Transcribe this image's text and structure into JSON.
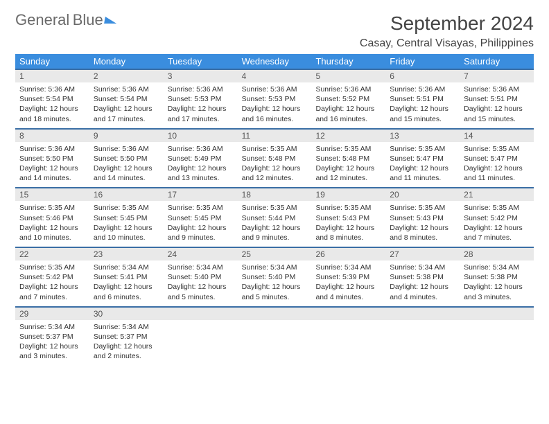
{
  "brand": {
    "word1": "General",
    "word2": "Blue"
  },
  "title": "September 2024",
  "location": "Casay, Central Visayas, Philippines",
  "colors": {
    "header_bg": "#3a8dde",
    "header_text": "#ffffff",
    "daynum_bg": "#e9e9e9",
    "rule": "#3a6ea5",
    "text": "#333333",
    "title_text": "#444444"
  },
  "day_headers": [
    "Sunday",
    "Monday",
    "Tuesday",
    "Wednesday",
    "Thursday",
    "Friday",
    "Saturday"
  ],
  "weeks": [
    [
      {
        "n": "1",
        "sr": "5:36 AM",
        "ss": "5:54 PM",
        "dl": "12 hours and 18 minutes."
      },
      {
        "n": "2",
        "sr": "5:36 AM",
        "ss": "5:54 PM",
        "dl": "12 hours and 17 minutes."
      },
      {
        "n": "3",
        "sr": "5:36 AM",
        "ss": "5:53 PM",
        "dl": "12 hours and 17 minutes."
      },
      {
        "n": "4",
        "sr": "5:36 AM",
        "ss": "5:53 PM",
        "dl": "12 hours and 16 minutes."
      },
      {
        "n": "5",
        "sr": "5:36 AM",
        "ss": "5:52 PM",
        "dl": "12 hours and 16 minutes."
      },
      {
        "n": "6",
        "sr": "5:36 AM",
        "ss": "5:51 PM",
        "dl": "12 hours and 15 minutes."
      },
      {
        "n": "7",
        "sr": "5:36 AM",
        "ss": "5:51 PM",
        "dl": "12 hours and 15 minutes."
      }
    ],
    [
      {
        "n": "8",
        "sr": "5:36 AM",
        "ss": "5:50 PM",
        "dl": "12 hours and 14 minutes."
      },
      {
        "n": "9",
        "sr": "5:36 AM",
        "ss": "5:50 PM",
        "dl": "12 hours and 14 minutes."
      },
      {
        "n": "10",
        "sr": "5:36 AM",
        "ss": "5:49 PM",
        "dl": "12 hours and 13 minutes."
      },
      {
        "n": "11",
        "sr": "5:35 AM",
        "ss": "5:48 PM",
        "dl": "12 hours and 12 minutes."
      },
      {
        "n": "12",
        "sr": "5:35 AM",
        "ss": "5:48 PM",
        "dl": "12 hours and 12 minutes."
      },
      {
        "n": "13",
        "sr": "5:35 AM",
        "ss": "5:47 PM",
        "dl": "12 hours and 11 minutes."
      },
      {
        "n": "14",
        "sr": "5:35 AM",
        "ss": "5:47 PM",
        "dl": "12 hours and 11 minutes."
      }
    ],
    [
      {
        "n": "15",
        "sr": "5:35 AM",
        "ss": "5:46 PM",
        "dl": "12 hours and 10 minutes."
      },
      {
        "n": "16",
        "sr": "5:35 AM",
        "ss": "5:45 PM",
        "dl": "12 hours and 10 minutes."
      },
      {
        "n": "17",
        "sr": "5:35 AM",
        "ss": "5:45 PM",
        "dl": "12 hours and 9 minutes."
      },
      {
        "n": "18",
        "sr": "5:35 AM",
        "ss": "5:44 PM",
        "dl": "12 hours and 9 minutes."
      },
      {
        "n": "19",
        "sr": "5:35 AM",
        "ss": "5:43 PM",
        "dl": "12 hours and 8 minutes."
      },
      {
        "n": "20",
        "sr": "5:35 AM",
        "ss": "5:43 PM",
        "dl": "12 hours and 8 minutes."
      },
      {
        "n": "21",
        "sr": "5:35 AM",
        "ss": "5:42 PM",
        "dl": "12 hours and 7 minutes."
      }
    ],
    [
      {
        "n": "22",
        "sr": "5:35 AM",
        "ss": "5:42 PM",
        "dl": "12 hours and 7 minutes."
      },
      {
        "n": "23",
        "sr": "5:34 AM",
        "ss": "5:41 PM",
        "dl": "12 hours and 6 minutes."
      },
      {
        "n": "24",
        "sr": "5:34 AM",
        "ss": "5:40 PM",
        "dl": "12 hours and 5 minutes."
      },
      {
        "n": "25",
        "sr": "5:34 AM",
        "ss": "5:40 PM",
        "dl": "12 hours and 5 minutes."
      },
      {
        "n": "26",
        "sr": "5:34 AM",
        "ss": "5:39 PM",
        "dl": "12 hours and 4 minutes."
      },
      {
        "n": "27",
        "sr": "5:34 AM",
        "ss": "5:38 PM",
        "dl": "12 hours and 4 minutes."
      },
      {
        "n": "28",
        "sr": "5:34 AM",
        "ss": "5:38 PM",
        "dl": "12 hours and 3 minutes."
      }
    ],
    [
      {
        "n": "29",
        "sr": "5:34 AM",
        "ss": "5:37 PM",
        "dl": "12 hours and 3 minutes."
      },
      {
        "n": "30",
        "sr": "5:34 AM",
        "ss": "5:37 PM",
        "dl": "12 hours and 2 minutes."
      },
      null,
      null,
      null,
      null,
      null
    ]
  ],
  "labels": {
    "sunrise": "Sunrise: ",
    "sunset": "Sunset: ",
    "daylight": "Daylight: "
  }
}
